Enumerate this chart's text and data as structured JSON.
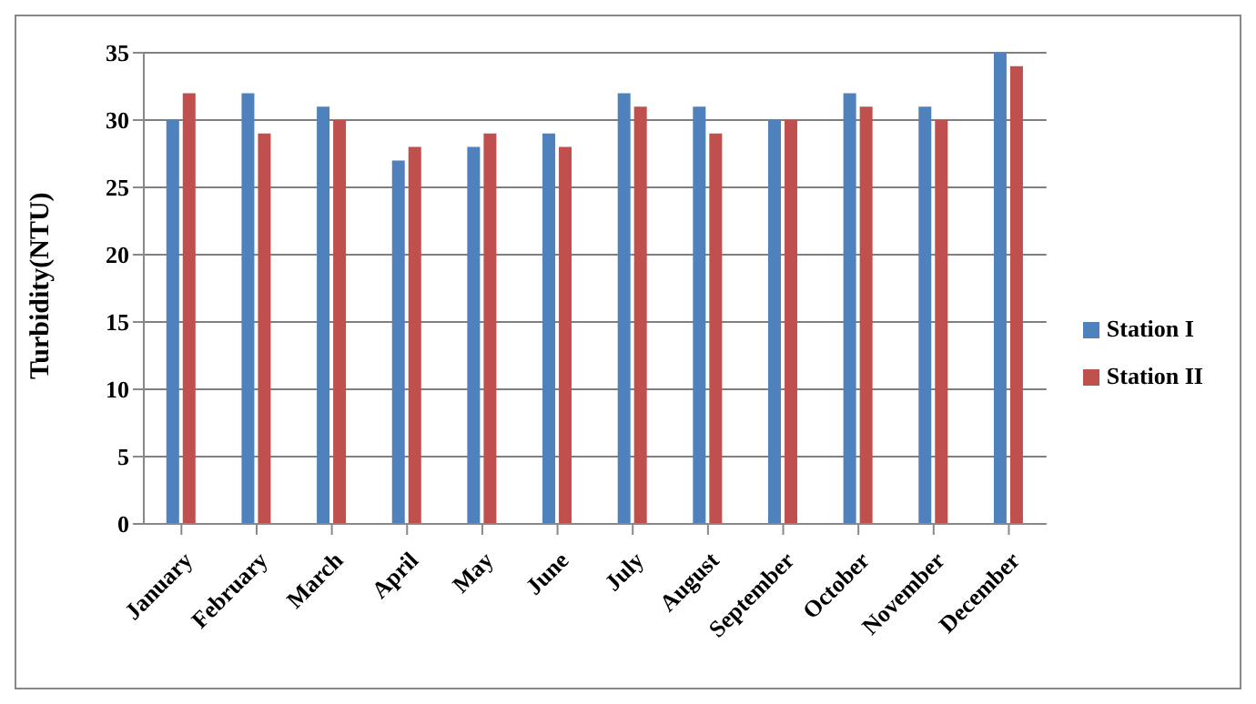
{
  "chart_data": {
    "type": "bar",
    "ylabel": "Turbidity(NTU)",
    "categories": [
      "January",
      "February",
      "March",
      "April",
      "May",
      "June",
      "July",
      "August",
      "September",
      "October",
      "November",
      "December"
    ],
    "series": [
      {
        "name": "Station I",
        "color": "#4f81bd",
        "values": [
          30,
          32,
          31,
          27,
          28,
          29,
          32,
          31,
          30,
          32,
          31,
          35
        ]
      },
      {
        "name": "Station II",
        "color": "#c0504d",
        "values": [
          32,
          29,
          30,
          28,
          29,
          28,
          31,
          29,
          30,
          31,
          30,
          34
        ]
      }
    ],
    "ylim": [
      0,
      35
    ],
    "yticks": [
      0,
      5,
      10,
      15,
      20,
      25,
      30,
      35
    ],
    "grid": "y",
    "legend": "right"
  }
}
